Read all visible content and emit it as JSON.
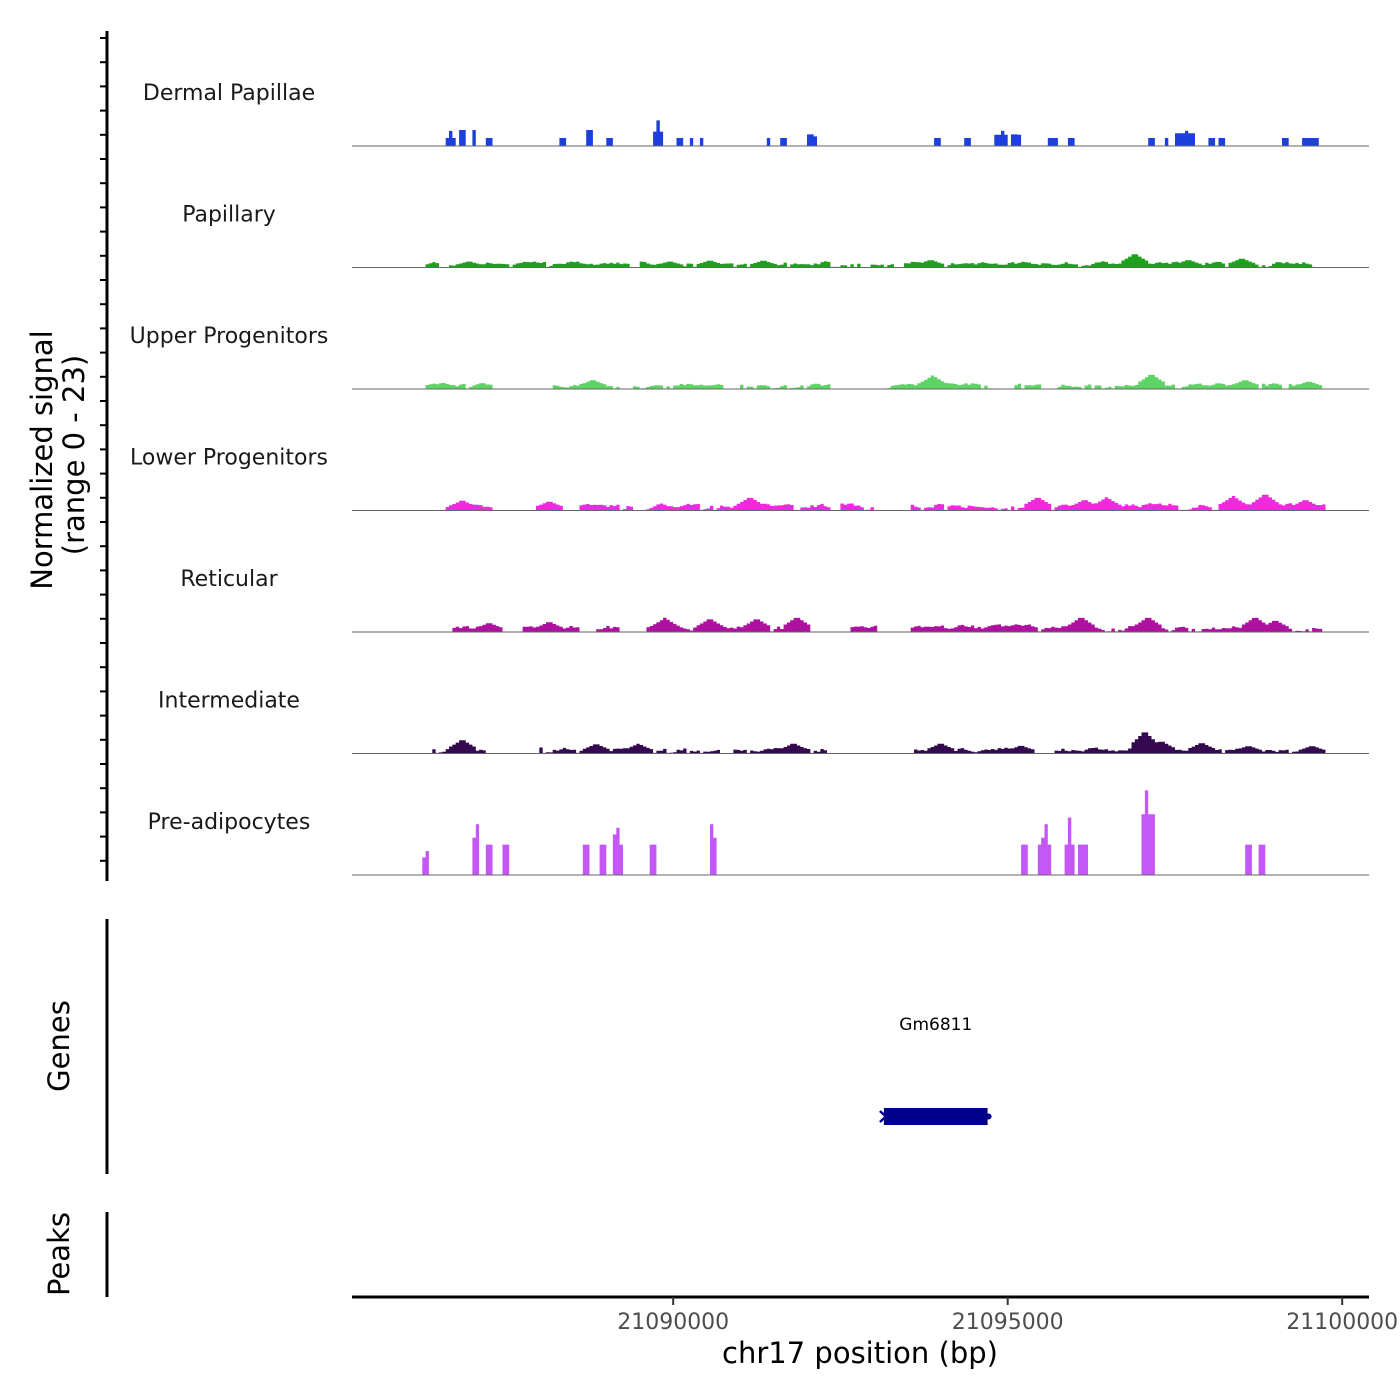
{
  "chart_data": {
    "type": "area",
    "title": "",
    "xlabel": "chr17 position (bp)",
    "ylabel": "Normalized signal\n(range 0 - 23)",
    "ylabel_lines": [
      "Normalized signal",
      "(range 0 - 23)"
    ],
    "xlim": [
      21085200,
      21100400
    ],
    "ylim": [
      0,
      23
    ],
    "x_ticks": [
      21090000,
      21095000,
      21100000
    ],
    "x_tick_labels": [
      "21090000",
      "21095000",
      "21100000"
    ],
    "bin_start": 21085600,
    "bin_size": 50,
    "series": [
      {
        "name": "Dermal Papillae",
        "color": "#1c3fdd",
        "segments": [
          {
            "start": 21086600,
            "end": 21086750,
            "level": 2.5
          },
          {
            "start": 21086800,
            "end": 21086900,
            "level": 5
          },
          {
            "start": 21086980,
            "end": 21087050,
            "level": 5
          },
          {
            "start": 21087180,
            "end": 21087280,
            "level": 2.5
          },
          {
            "start": 21088300,
            "end": 21088390,
            "level": 2.5
          },
          {
            "start": 21088720,
            "end": 21088820,
            "level": 5
          },
          {
            "start": 21089020,
            "end": 21089100,
            "level": 2.5
          },
          {
            "start": 21089700,
            "end": 21089850,
            "level": 4.5
          },
          {
            "start": 21090060,
            "end": 21090150,
            "level": 2.5
          },
          {
            "start": 21090240,
            "end": 21090300,
            "level": 2.5
          },
          {
            "start": 21090390,
            "end": 21090470,
            "level": 2.5
          },
          {
            "start": 21091380,
            "end": 21091470,
            "level": 2.5
          },
          {
            "start": 21091600,
            "end": 21091700,
            "level": 2.5
          },
          {
            "start": 21091980,
            "end": 21092150,
            "level": 3
          },
          {
            "start": 21093920,
            "end": 21094000,
            "level": 2.5
          },
          {
            "start": 21094370,
            "end": 21094460,
            "level": 2.5
          },
          {
            "start": 21094820,
            "end": 21095000,
            "level": 3.5
          },
          {
            "start": 21095060,
            "end": 21095180,
            "level": 3.5
          },
          {
            "start": 21095620,
            "end": 21095750,
            "level": 2.5
          },
          {
            "start": 21095880,
            "end": 21095980,
            "level": 2.5
          },
          {
            "start": 21097100,
            "end": 21097200,
            "level": 2.5
          },
          {
            "start": 21097330,
            "end": 21097410,
            "level": 2.5
          },
          {
            "start": 21097520,
            "end": 21097820,
            "level": 4
          },
          {
            "start": 21098000,
            "end": 21098080,
            "level": 2.5
          },
          {
            "start": 21098140,
            "end": 21098230,
            "level": 2.5
          },
          {
            "start": 21099100,
            "end": 21099190,
            "level": 2.5
          },
          {
            "start": 21099420,
            "end": 21099540,
            "level": 2.5
          },
          {
            "start": 21099560,
            "end": 21099660,
            "level": 2.5
          }
        ],
        "peaks": [
          {
            "pos": 21086680,
            "height": 5
          },
          {
            "pos": 21089775,
            "height": 8
          },
          {
            "pos": 21092050,
            "height": 5
          },
          {
            "pos": 21094920,
            "height": 5
          },
          {
            "pos": 21095100,
            "height": 5
          },
          {
            "pos": 21097670,
            "height": 5
          }
        ]
      },
      {
        "name": "Papillary",
        "color": "#1aa31a",
        "noise": true,
        "range": [
          21086300,
          21099600
        ],
        "base": 1.2,
        "amp": 0.9,
        "gaps": [
          [
            21086500,
            21086650
          ],
          [
            21089350,
            21089500
          ],
          [
            21092800,
            21092950
          ],
          [
            21093300,
            21093450
          ]
        ],
        "peaks": [
          {
            "pos": 21086950,
            "height": 2
          },
          {
            "pos": 21089950,
            "height": 2
          },
          {
            "pos": 21090550,
            "height": 2.3
          },
          {
            "pos": 21091350,
            "height": 2.3
          },
          {
            "pos": 21093850,
            "height": 2.5
          },
          {
            "pos": 21096900,
            "height": 4.5
          },
          {
            "pos": 21097700,
            "height": 2.5
          },
          {
            "pos": 21098500,
            "height": 3
          }
        ]
      },
      {
        "name": "Upper Progenitors",
        "color": "#5dd463",
        "noise": true,
        "range": [
          21086300,
          21099650
        ],
        "base": 1.1,
        "amp": 0.9,
        "gaps": [
          [
            21087320,
            21088200
          ],
          [
            21089200,
            21089420
          ],
          [
            21090750,
            21091000
          ],
          [
            21092350,
            21093150
          ],
          [
            21094800,
            21095100
          ],
          [
            21095500,
            21095700
          ],
          [
            21098600,
            21098800
          ],
          [
            21099100,
            21099200
          ]
        ],
        "peaks": [
          {
            "pos": 21086560,
            "height": 2
          },
          {
            "pos": 21088800,
            "height": 3
          },
          {
            "pos": 21093880,
            "height": 4.3
          },
          {
            "pos": 21097150,
            "height": 4.8
          },
          {
            "pos": 21098550,
            "height": 3
          },
          {
            "pos": 21099500,
            "height": 2.5
          }
        ]
      },
      {
        "name": "Lower Progenitors",
        "color": "#ee2bdc",
        "noise": true,
        "range": [
          21086500,
          21099750
        ],
        "base": 1.3,
        "amp": 1.1,
        "gaps": [
          [
            21087300,
            21088050
          ],
          [
            21088300,
            21088620
          ],
          [
            21089400,
            21089550
          ],
          [
            21092350,
            21092500
          ],
          [
            21093000,
            21093550
          ]
        ],
        "peaks": [
          {
            "pos": 21086850,
            "height": 3.3
          },
          {
            "pos": 21088150,
            "height": 3
          },
          {
            "pos": 21091150,
            "height": 4.3
          },
          {
            "pos": 21095450,
            "height": 4.3
          },
          {
            "pos": 21096150,
            "height": 3.5
          },
          {
            "pos": 21096480,
            "height": 4.2
          },
          {
            "pos": 21098370,
            "height": 4.6
          },
          {
            "pos": 21098850,
            "height": 5.4
          },
          {
            "pos": 21099450,
            "height": 3.5
          }
        ]
      },
      {
        "name": "Reticular",
        "color": "#ae11a0",
        "noise": true,
        "range": [
          21086700,
          21099700
        ],
        "base": 1.1,
        "amp": 1.3,
        "gaps": [
          [
            21087300,
            21087750
          ],
          [
            21088600,
            21088850
          ],
          [
            21089200,
            21089600
          ],
          [
            21092000,
            21092650
          ],
          [
            21093050,
            21093550
          ]
        ],
        "peaks": [
          {
            "pos": 21087250,
            "height": 3
          },
          {
            "pos": 21088150,
            "height": 3.3
          },
          {
            "pos": 21089880,
            "height": 4.5
          },
          {
            "pos": 21090550,
            "height": 4.3
          },
          {
            "pos": 21091250,
            "height": 4.3
          },
          {
            "pos": 21091850,
            "height": 4.8
          },
          {
            "pos": 21096100,
            "height": 4.8
          },
          {
            "pos": 21097100,
            "height": 4.8
          },
          {
            "pos": 21098700,
            "height": 4.8
          },
          {
            "pos": 21099000,
            "height": 3.8
          }
        ]
      },
      {
        "name": "Intermediate",
        "color": "#34094f",
        "noise": true,
        "range": [
          21086400,
          21099700
        ],
        "base": 1.0,
        "amp": 1.1,
        "gaps": [
          [
            21087200,
            21088000
          ],
          [
            21090700,
            21090900
          ],
          [
            21092300,
            21093600
          ],
          [
            21095400,
            21095700
          ]
        ],
        "peaks": [
          {
            "pos": 21086850,
            "height": 4.5
          },
          {
            "pos": 21088850,
            "height": 3.1
          },
          {
            "pos": 21089480,
            "height": 3.1
          },
          {
            "pos": 21091800,
            "height": 3.3
          },
          {
            "pos": 21094000,
            "height": 3.3
          },
          {
            "pos": 21095200,
            "height": 2.6
          },
          {
            "pos": 21097050,
            "height": 7.2
          },
          {
            "pos": 21097300,
            "height": 4
          },
          {
            "pos": 21097900,
            "height": 3.5
          },
          {
            "pos": 21098600,
            "height": 2.5
          },
          {
            "pos": 21099550,
            "height": 2.5
          }
        ]
      },
      {
        "name": "Pre-adipocytes",
        "color": "#c457f6",
        "segments": [
          {
            "start": 21086990,
            "end": 21087110,
            "level": 9.5
          },
          {
            "start": 21087210,
            "end": 21087300,
            "level": 9.5
          },
          {
            "start": 21087440,
            "end": 21087540,
            "level": 9.5
          },
          {
            "start": 21088670,
            "end": 21088770,
            "level": 9.5
          },
          {
            "start": 21088890,
            "end": 21088980,
            "level": 9.5
          },
          {
            "start": 21089080,
            "end": 21089230,
            "level": 9.5
          },
          {
            "start": 21089630,
            "end": 21089770,
            "level": 9.5
          },
          {
            "start": 21090530,
            "end": 21090650,
            "level": 9.5
          },
          {
            "start": 21095180,
            "end": 21095310,
            "level": 9.5
          },
          {
            "start": 21095460,
            "end": 21095640,
            "level": 9.5
          },
          {
            "start": 21095850,
            "end": 21096000,
            "level": 9.5
          },
          {
            "start": 21096050,
            "end": 21096180,
            "level": 9.5
          },
          {
            "start": 21096980,
            "end": 21097200,
            "level": 19
          },
          {
            "start": 21098570,
            "end": 21098650,
            "level": 9.5
          },
          {
            "start": 21098750,
            "end": 21098860,
            "level": 9.5
          }
        ],
        "peaks": [
          {
            "pos": 21086310,
            "height": 9
          },
          {
            "pos": 21087060,
            "height": 19
          },
          {
            "pos": 21089155,
            "height": 19
          },
          {
            "pos": 21090590,
            "height": 19
          },
          {
            "pos": 21095560,
            "height": 19
          },
          {
            "pos": 21095920,
            "height": 19
          },
          {
            "pos": 21097080,
            "height": 28
          }
        ]
      }
    ],
    "genes": [
      {
        "name": "Gm6811",
        "start": 21093150,
        "end": 21094700,
        "strand": "-",
        "color": "#00008b"
      }
    ],
    "panels": {
      "genes_label": "Genes",
      "peaks_label": "Peaks"
    }
  }
}
